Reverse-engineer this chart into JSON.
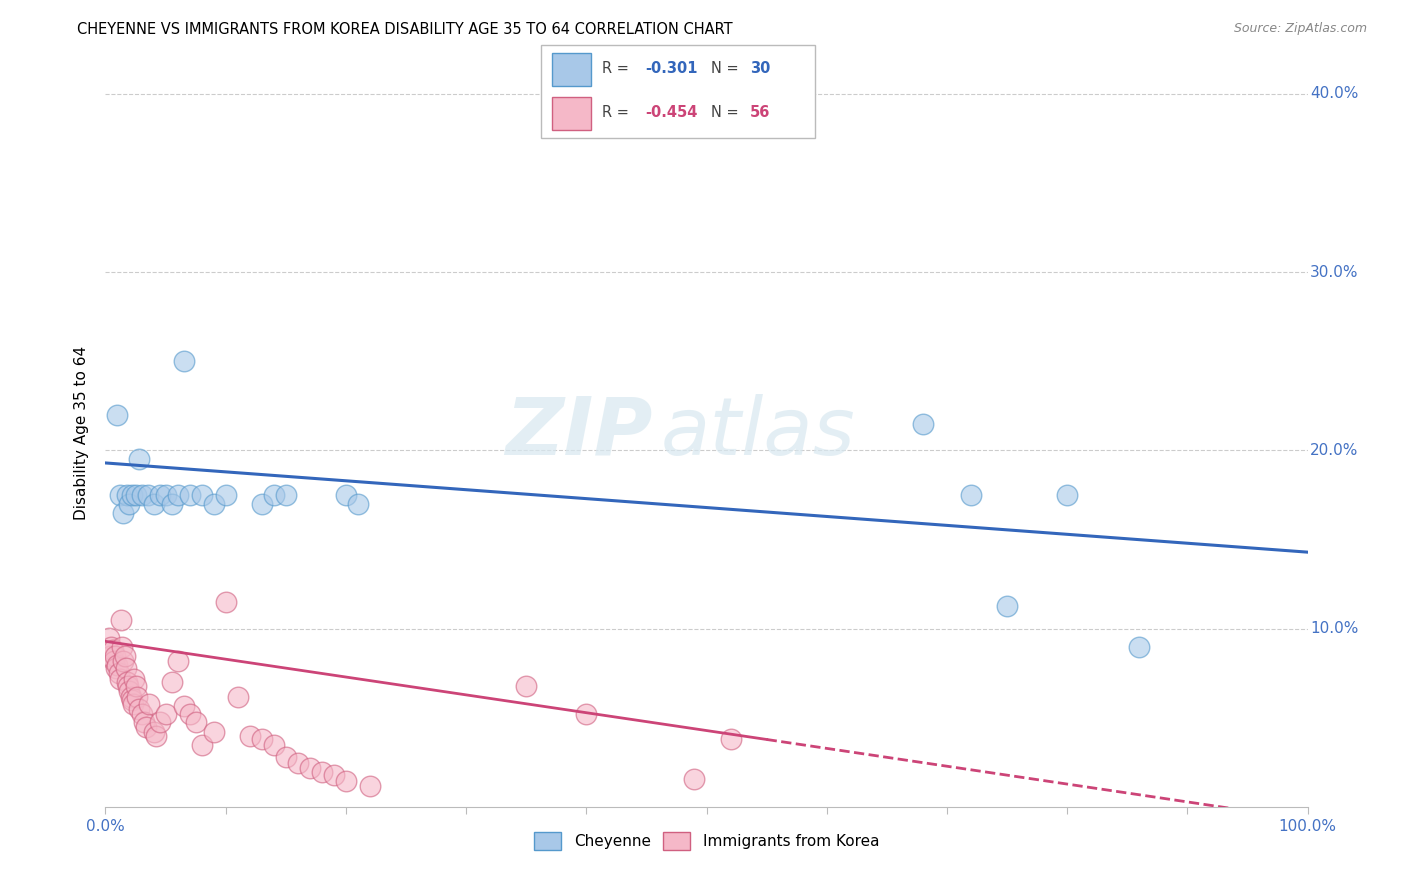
{
  "title": "CHEYENNE VS IMMIGRANTS FROM KOREA DISABILITY AGE 35 TO 64 CORRELATION CHART",
  "source": "Source: ZipAtlas.com",
  "ylabel": "Disability Age 35 to 64",
  "xlim": [
    0,
    1.0
  ],
  "ylim": [
    0,
    0.42
  ],
  "ytick_positions": [
    0.1,
    0.2,
    0.3,
    0.4
  ],
  "ytick_labels": [
    "10.0%",
    "20.0%",
    "30.0%",
    "40.0%"
  ],
  "xtick_positions": [
    0.0,
    0.1,
    0.2,
    0.3,
    0.4,
    0.5,
    0.6,
    0.7,
    0.8,
    0.9,
    1.0
  ],
  "r_blue": -0.301,
  "n_blue": 30,
  "r_pink": -0.454,
  "n_pink": 56,
  "blue_scatter_color": "#a8c8e8",
  "blue_edge_color": "#5599cc",
  "pink_scatter_color": "#f5b8c8",
  "pink_edge_color": "#d06080",
  "blue_line_color": "#3366bb",
  "pink_line_color": "#cc4477",
  "axis_color": "#4472c4",
  "background_color": "#ffffff",
  "grid_color": "#cccccc",
  "watermark_zip": "ZIP",
  "watermark_atlas": "atlas",
  "legend_label_blue": "Cheyenne",
  "legend_label_pink": "Immigrants from Korea",
  "blue_line_x0": 0.0,
  "blue_line_y0": 0.193,
  "blue_line_x1": 1.0,
  "blue_line_y1": 0.143,
  "pink_line_x0": 0.0,
  "pink_line_y0": 0.093,
  "pink_line_x1": 0.55,
  "pink_line_y1": 0.038,
  "blue_x": [
    0.01,
    0.012,
    0.015,
    0.018,
    0.02,
    0.022,
    0.025,
    0.028,
    0.03,
    0.035,
    0.04,
    0.045,
    0.05,
    0.055,
    0.06,
    0.065,
    0.07,
    0.08,
    0.09,
    0.1,
    0.13,
    0.14,
    0.15,
    0.2,
    0.21,
    0.68,
    0.72,
    0.75,
    0.8,
    0.86
  ],
  "blue_y": [
    0.22,
    0.175,
    0.165,
    0.175,
    0.17,
    0.175,
    0.175,
    0.195,
    0.175,
    0.175,
    0.17,
    0.175,
    0.175,
    0.17,
    0.175,
    0.25,
    0.175,
    0.175,
    0.17,
    0.175,
    0.17,
    0.175,
    0.175,
    0.175,
    0.17,
    0.215,
    0.175,
    0.113,
    0.175,
    0.09
  ],
  "pink_x": [
    0.003,
    0.004,
    0.005,
    0.006,
    0.007,
    0.008,
    0.009,
    0.01,
    0.011,
    0.012,
    0.013,
    0.014,
    0.015,
    0.016,
    0.017,
    0.018,
    0.019,
    0.02,
    0.021,
    0.022,
    0.023,
    0.024,
    0.025,
    0.026,
    0.028,
    0.03,
    0.032,
    0.034,
    0.036,
    0.04,
    0.042,
    0.045,
    0.05,
    0.055,
    0.06,
    0.065,
    0.07,
    0.075,
    0.08,
    0.09,
    0.1,
    0.11,
    0.12,
    0.13,
    0.14,
    0.15,
    0.16,
    0.17,
    0.18,
    0.19,
    0.2,
    0.22,
    0.35,
    0.4,
    0.49,
    0.52
  ],
  "pink_y": [
    0.095,
    0.085,
    0.09,
    0.088,
    0.082,
    0.085,
    0.078,
    0.08,
    0.075,
    0.072,
    0.105,
    0.09,
    0.082,
    0.085,
    0.078,
    0.07,
    0.068,
    0.065,
    0.062,
    0.06,
    0.058,
    0.072,
    0.068,
    0.062,
    0.055,
    0.052,
    0.048,
    0.045,
    0.058,
    0.042,
    0.04,
    0.048,
    0.052,
    0.07,
    0.082,
    0.057,
    0.052,
    0.048,
    0.035,
    0.042,
    0.115,
    0.062,
    0.04,
    0.038,
    0.035,
    0.028,
    0.025,
    0.022,
    0.02,
    0.018,
    0.015,
    0.012,
    0.068,
    0.052,
    0.016,
    0.038
  ]
}
